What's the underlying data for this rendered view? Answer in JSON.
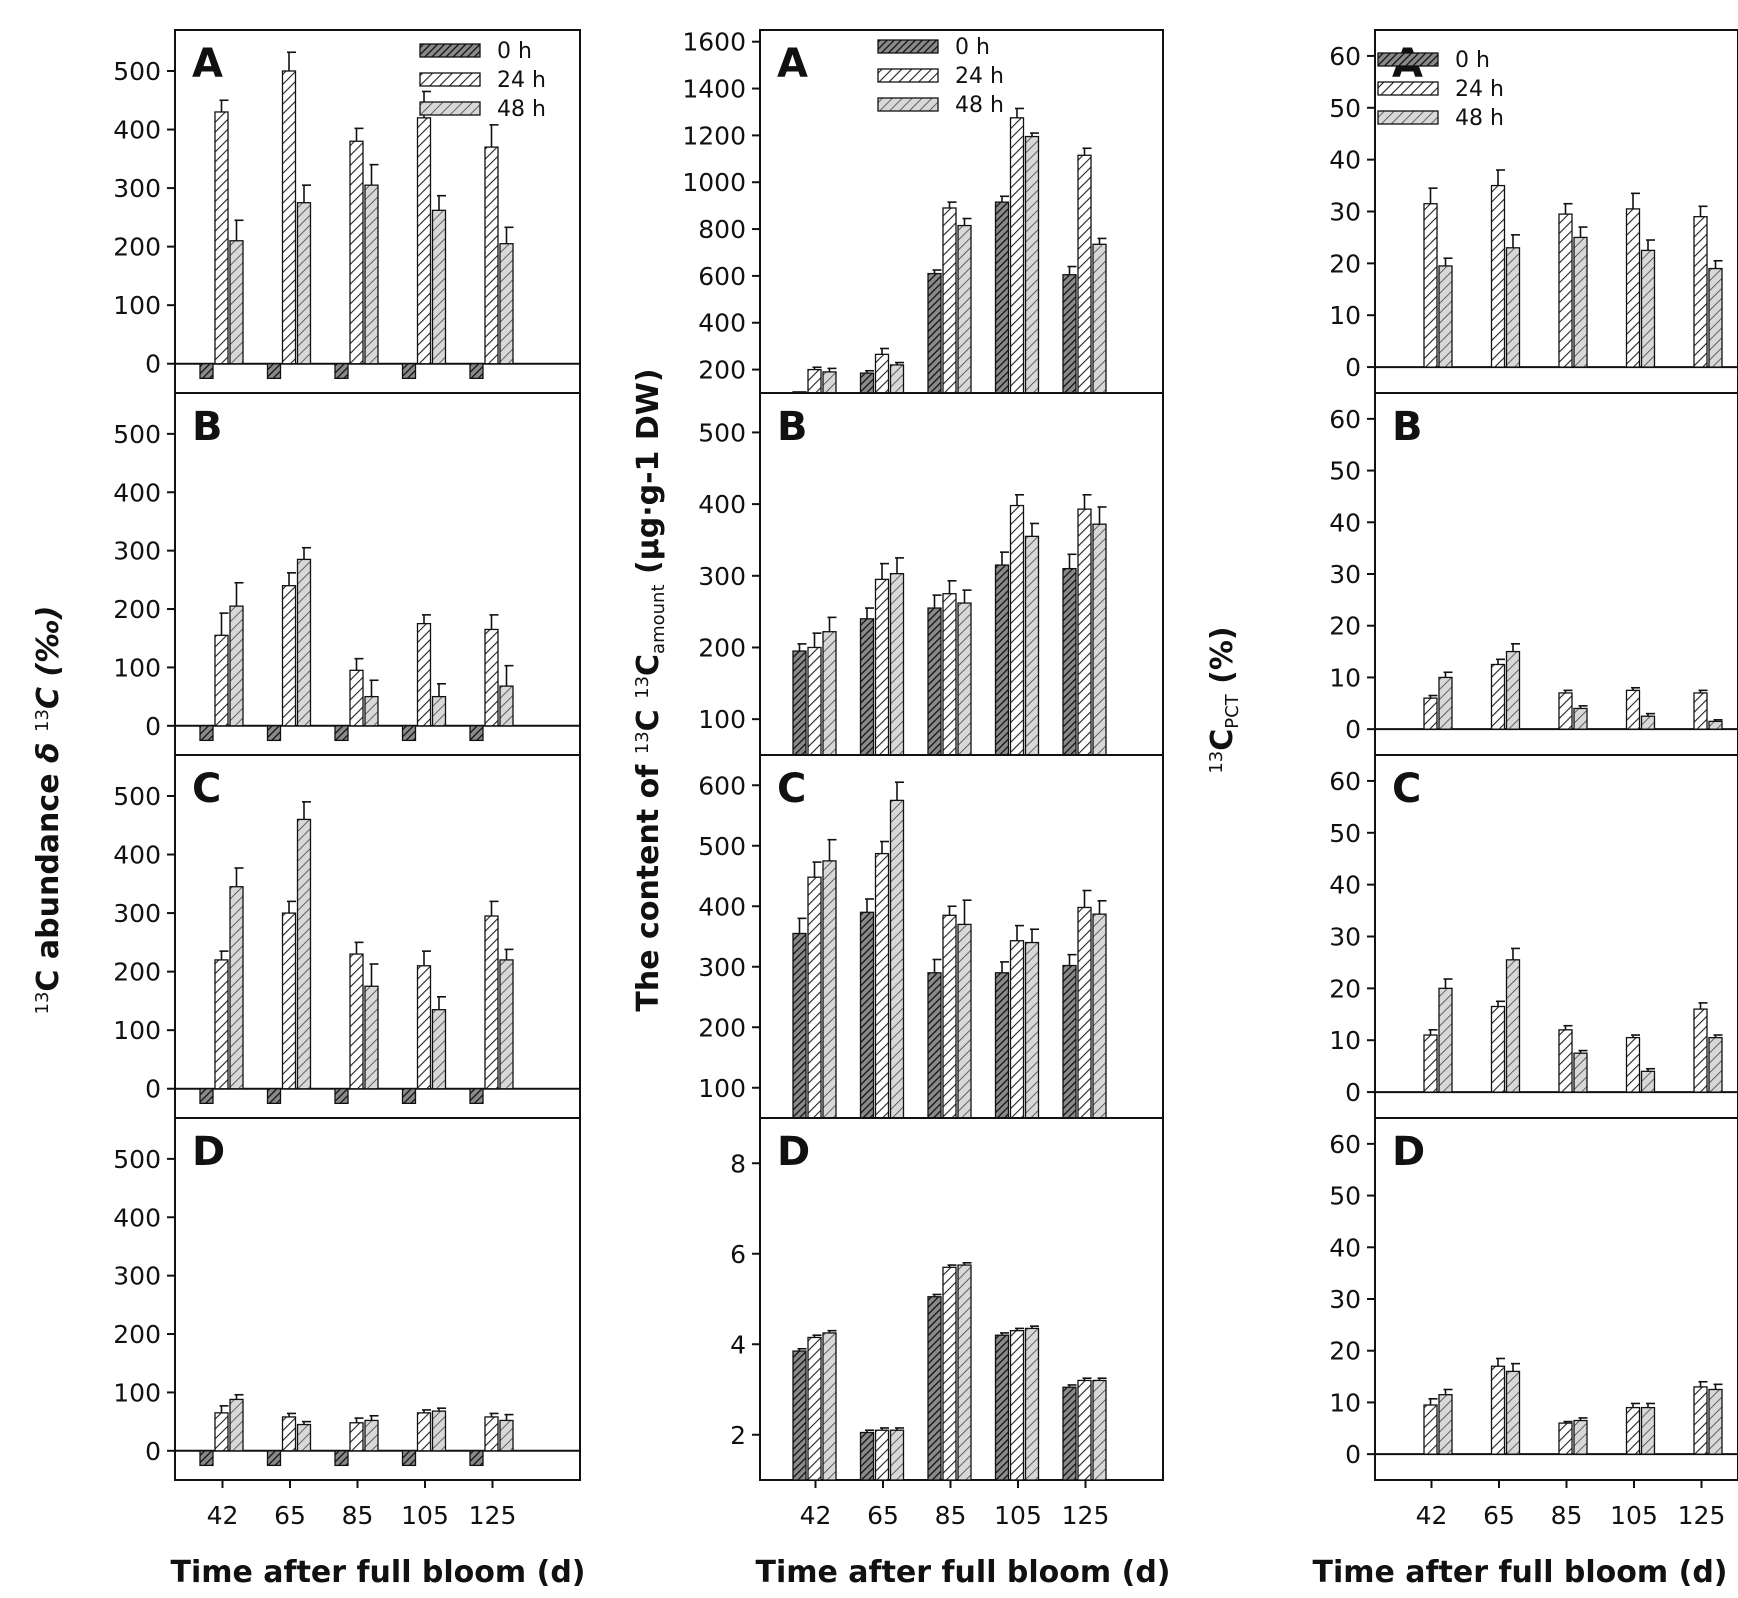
{
  "figure": {
    "xlabel": "Time after full bloom (d)",
    "columns": [
      {
        "ylabel_parts": [
          "13",
          "C abundance ",
          "δ ",
          "13",
          "C (‰)"
        ]
      },
      {
        "ylabel_parts": [
          "The content of ",
          "13",
          "C ",
          "13",
          "C",
          "amount",
          " (μg·g-1 DW)"
        ]
      },
      {
        "ylabel_parts": [
          "13",
          "C",
          "PCT",
          " (%)"
        ]
      }
    ],
    "legend": [
      "0 h",
      "24 h",
      "48 h"
    ]
  },
  "chart_data": [
    {
      "type": "bar",
      "column": 1,
      "panel": "A",
      "title": "",
      "xlabel": "Time after full bloom (d)",
      "ylabel": "13C abundance δ 13C (‰)",
      "categories": [
        "42",
        "65",
        "85",
        "105",
        "125"
      ],
      "ylim": [
        -50,
        570
      ],
      "yticks": [
        0,
        100,
        200,
        300,
        400,
        500
      ],
      "baseline": 0,
      "series": [
        {
          "name": "0 h",
          "values": [
            -25,
            -25,
            -25,
            -25,
            -25
          ]
        },
        {
          "name": "24 h",
          "values": [
            430,
            500,
            380,
            420,
            370
          ]
        },
        {
          "name": "48 h",
          "values": [
            210,
            275,
            305,
            262,
            205
          ]
        }
      ],
      "errors": [
        [
          0,
          0,
          0,
          0,
          0
        ],
        [
          20,
          32,
          22,
          45,
          38
        ],
        [
          35,
          30,
          35,
          25,
          28
        ]
      ],
      "legend": [
        "0 h",
        "24 h",
        "48 h"
      ],
      "legend_pos": "top-right"
    },
    {
      "type": "bar",
      "column": 1,
      "panel": "B",
      "categories": [
        "42",
        "65",
        "85",
        "105",
        "125"
      ],
      "ylim": [
        -50,
        570
      ],
      "yticks": [
        0,
        100,
        200,
        300,
        400,
        500
      ],
      "baseline": 0,
      "series": [
        {
          "name": "0 h",
          "values": [
            -25,
            -25,
            -25,
            -25,
            -25
          ]
        },
        {
          "name": "24 h",
          "values": [
            155,
            240,
            95,
            175,
            165
          ]
        },
        {
          "name": "48 h",
          "values": [
            205,
            285,
            50,
            50,
            68
          ]
        }
      ],
      "errors": [
        [
          0,
          0,
          0,
          0,
          0
        ],
        [
          38,
          22,
          20,
          15,
          25
        ],
        [
          40,
          20,
          28,
          22,
          35
        ]
      ]
    },
    {
      "type": "bar",
      "column": 1,
      "panel": "C",
      "categories": [
        "42",
        "65",
        "85",
        "105",
        "125"
      ],
      "ylim": [
        -50,
        570
      ],
      "yticks": [
        0,
        100,
        200,
        300,
        400,
        500
      ],
      "baseline": 0,
      "series": [
        {
          "name": "0 h",
          "values": [
            -25,
            -25,
            -25,
            -25,
            -25
          ]
        },
        {
          "name": "24 h",
          "values": [
            220,
            300,
            230,
            210,
            295
          ]
        },
        {
          "name": "48 h",
          "values": [
            345,
            460,
            175,
            135,
            220
          ]
        }
      ],
      "errors": [
        [
          0,
          0,
          0,
          0,
          0
        ],
        [
          15,
          20,
          20,
          25,
          25
        ],
        [
          32,
          30,
          38,
          22,
          18
        ]
      ]
    },
    {
      "type": "bar",
      "column": 1,
      "panel": "D",
      "categories": [
        "42",
        "65",
        "85",
        "105",
        "125"
      ],
      "ylim": [
        -50,
        570
      ],
      "yticks": [
        0,
        100,
        200,
        300,
        400,
        500
      ],
      "baseline": 0,
      "series": [
        {
          "name": "0 h",
          "values": [
            -25,
            -25,
            -25,
            -25,
            -25
          ]
        },
        {
          "name": "24 h",
          "values": [
            65,
            58,
            48,
            65,
            58
          ]
        },
        {
          "name": "48 h",
          "values": [
            88,
            45,
            52,
            68,
            52
          ]
        }
      ],
      "errors": [
        [
          0,
          0,
          0,
          0,
          0
        ],
        [
          12,
          6,
          8,
          5,
          6
        ],
        [
          8,
          5,
          8,
          5,
          10
        ]
      ]
    },
    {
      "type": "bar",
      "column": 2,
      "panel": "A",
      "ylabel": "The content of 13C 13Camount (μg·g-1 DW)",
      "categories": [
        "42",
        "65",
        "85",
        "105",
        "125"
      ],
      "ylim": [
        100,
        1650
      ],
      "yticks": [
        200,
        400,
        600,
        800,
        1000,
        1200,
        1400,
        1600
      ],
      "baseline": 100,
      "series": [
        {
          "name": "0 h",
          "values": [
            105,
            185,
            610,
            915,
            605
          ]
        },
        {
          "name": "24 h",
          "values": [
            200,
            265,
            890,
            1275,
            1115
          ]
        },
        {
          "name": "48 h",
          "values": [
            190,
            220,
            815,
            1195,
            735
          ]
        }
      ],
      "errors": [
        [
          0,
          10,
          15,
          25,
          35
        ],
        [
          10,
          25,
          25,
          40,
          30
        ],
        [
          15,
          10,
          30,
          15,
          25
        ]
      ],
      "legend": [
        "0 h",
        "24 h",
        "48 h"
      ],
      "legend_pos": "top-left"
    },
    {
      "type": "bar",
      "column": 2,
      "panel": "B",
      "categories": [
        "42",
        "65",
        "85",
        "105",
        "125"
      ],
      "ylim": [
        50,
        555
      ],
      "yticks": [
        100,
        200,
        300,
        400,
        500
      ],
      "baseline": 50,
      "series": [
        {
          "name": "0 h",
          "values": [
            195,
            240,
            255,
            315,
            310
          ]
        },
        {
          "name": "24 h",
          "values": [
            200,
            295,
            275,
            398,
            393
          ]
        },
        {
          "name": "48 h",
          "values": [
            222,
            303,
            262,
            355,
            372
          ]
        }
      ],
      "errors": [
        [
          10,
          15,
          18,
          18,
          20
        ],
        [
          20,
          22,
          18,
          15,
          20
        ],
        [
          20,
          22,
          18,
          18,
          24
        ]
      ]
    },
    {
      "type": "bar",
      "column": 2,
      "panel": "C",
      "categories": [
        "42",
        "65",
        "85",
        "105",
        "125"
      ],
      "ylim": [
        50,
        650
      ],
      "yticks": [
        100,
        200,
        300,
        400,
        500,
        600
      ],
      "baseline": 50,
      "series": [
        {
          "name": "0 h",
          "values": [
            355,
            390,
            290,
            290,
            302
          ]
        },
        {
          "name": "24 h",
          "values": [
            448,
            487,
            385,
            343,
            398
          ]
        },
        {
          "name": "48 h",
          "values": [
            475,
            575,
            370,
            340,
            387
          ]
        }
      ],
      "errors": [
        [
          25,
          22,
          22,
          18,
          18
        ],
        [
          25,
          20,
          15,
          25,
          28
        ],
        [
          35,
          30,
          40,
          22,
          22
        ]
      ]
    },
    {
      "type": "bar",
      "column": 2,
      "panel": "D",
      "categories": [
        "42",
        "65",
        "85",
        "105",
        "125"
      ],
      "ylim": [
        1,
        9
      ],
      "yticks": [
        2,
        4,
        6,
        8
      ],
      "baseline": 1,
      "series": [
        {
          "name": "0 h",
          "values": [
            3.85,
            2.05,
            5.05,
            4.2,
            3.05
          ]
        },
        {
          "name": "24 h",
          "values": [
            4.15,
            2.1,
            5.7,
            4.3,
            3.2
          ]
        },
        {
          "name": "48 h",
          "values": [
            4.25,
            2.1,
            5.75,
            4.35,
            3.2
          ]
        }
      ],
      "errors": [
        [
          0.05,
          0.05,
          0.05,
          0.05,
          0.05
        ],
        [
          0.05,
          0.05,
          0.05,
          0.05,
          0.05
        ],
        [
          0.05,
          0.05,
          0.05,
          0.05,
          0.05
        ]
      ]
    },
    {
      "type": "bar",
      "column": 3,
      "panel": "A",
      "ylabel": "13CPCT (%)",
      "categories": [
        "42",
        "65",
        "85",
        "105",
        "125"
      ],
      "ylim": [
        -5,
        65
      ],
      "yticks": [
        0,
        10,
        20,
        30,
        40,
        50,
        60
      ],
      "baseline": 0,
      "series": [
        {
          "name": "0 h",
          "values": [
            0,
            0,
            0,
            0,
            0
          ]
        },
        {
          "name": "24 h",
          "values": [
            31.5,
            35,
            29.5,
            30.5,
            29
          ]
        },
        {
          "name": "48 h",
          "values": [
            19.5,
            23,
            25,
            22.5,
            19
          ]
        }
      ],
      "errors": [
        [
          0,
          0,
          0,
          0,
          0
        ],
        [
          3,
          3,
          2,
          3,
          2
        ],
        [
          1.5,
          2.5,
          2,
          2,
          1.5
        ]
      ],
      "legend": [
        "0 h",
        "24 h",
        "48 h"
      ],
      "legend_pos": "top-left"
    },
    {
      "type": "bar",
      "column": 3,
      "panel": "B",
      "categories": [
        "42",
        "65",
        "85",
        "105",
        "125"
      ],
      "ylim": [
        -5,
        65
      ],
      "yticks": [
        0,
        10,
        20,
        30,
        40,
        50,
        60
      ],
      "baseline": 0,
      "series": [
        {
          "name": "0 h",
          "values": [
            0,
            0,
            0,
            0,
            0
          ]
        },
        {
          "name": "24 h",
          "values": [
            6,
            12.5,
            7,
            7.5,
            7
          ]
        },
        {
          "name": "48 h",
          "values": [
            10,
            15,
            4,
            2.5,
            1.5
          ]
        }
      ],
      "errors": [
        [
          0,
          0,
          0,
          0,
          0
        ],
        [
          0.5,
          1,
          0.5,
          0.5,
          0.5
        ],
        [
          1,
          1.5,
          0.5,
          0.5,
          0.3
        ]
      ]
    },
    {
      "type": "bar",
      "column": 3,
      "panel": "C",
      "categories": [
        "42",
        "65",
        "85",
        "105",
        "125"
      ],
      "ylim": [
        -5,
        65
      ],
      "yticks": [
        0,
        10,
        20,
        30,
        40,
        50,
        60
      ],
      "baseline": 0,
      "series": [
        {
          "name": "0 h",
          "values": [
            0,
            0,
            0,
            0,
            0
          ]
        },
        {
          "name": "24 h",
          "values": [
            11,
            16.5,
            12,
            10.5,
            16
          ]
        },
        {
          "name": "48 h",
          "values": [
            20,
            25.5,
            7.5,
            4,
            10.5
          ]
        }
      ],
      "errors": [
        [
          0,
          0,
          0,
          0,
          0
        ],
        [
          1,
          1,
          0.8,
          0.5,
          1.2
        ],
        [
          1.8,
          2.2,
          0.5,
          0.5,
          0.5
        ]
      ]
    },
    {
      "type": "bar",
      "column": 3,
      "panel": "D",
      "categories": [
        "42",
        "65",
        "85",
        "105",
        "125"
      ],
      "ylim": [
        -5,
        65
      ],
      "yticks": [
        0,
        10,
        20,
        30,
        40,
        50,
        60
      ],
      "baseline": 0,
      "series": [
        {
          "name": "0 h",
          "values": [
            0,
            0,
            0,
            0,
            0
          ]
        },
        {
          "name": "24 h",
          "values": [
            9.5,
            17,
            6,
            9,
            13
          ]
        },
        {
          "name": "48 h",
          "values": [
            11.5,
            16,
            6.5,
            9,
            12.5
          ]
        }
      ],
      "errors": [
        [
          0,
          0,
          0,
          0,
          0
        ],
        [
          1.2,
          1.5,
          0.3,
          0.8,
          1
        ],
        [
          1,
          1.5,
          0.5,
          0.8,
          1
        ]
      ]
    }
  ]
}
